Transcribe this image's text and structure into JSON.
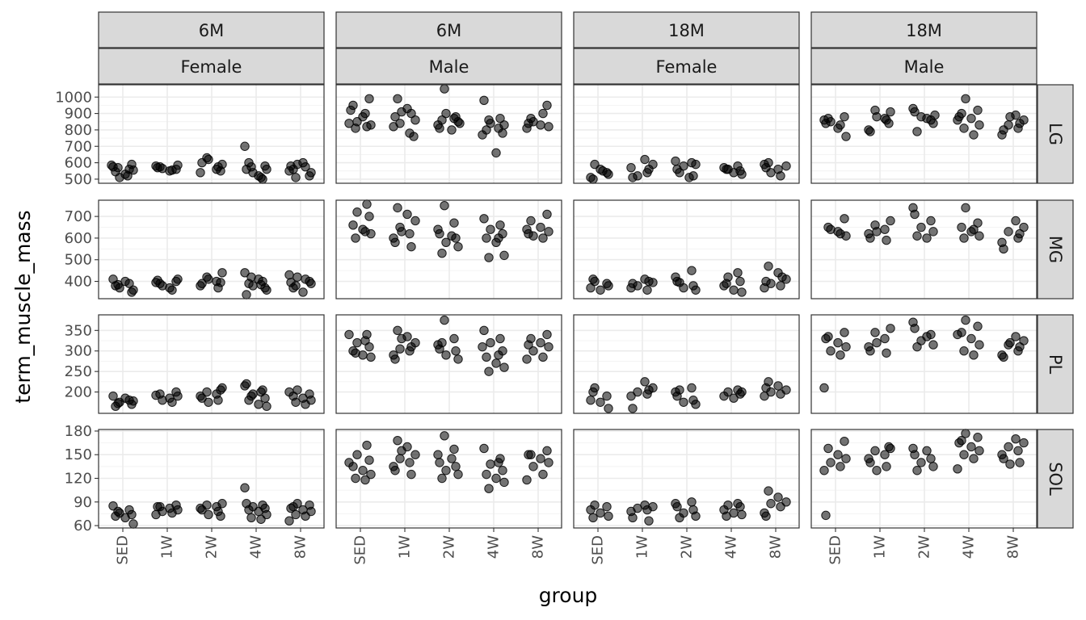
{
  "chart_data": {
    "type": "scatter",
    "xlabel": "group",
    "ylabel": "term_muscle_mass",
    "categories": [
      "SED",
      "1W",
      "2W",
      "4W",
      "8W"
    ],
    "columns": [
      {
        "age": "6M",
        "sex": "Female"
      },
      {
        "age": "6M",
        "sex": "Male"
      },
      {
        "age": "18M",
        "sex": "Female"
      },
      {
        "age": "18M",
        "sex": "Male"
      }
    ],
    "rows": [
      {
        "muscle": "LG",
        "ylim": [
          475,
          1075
        ],
        "ticks": [
          500,
          600,
          700,
          800,
          900,
          1000
        ],
        "tick_labels": [
          "500",
          "600",
          "700",
          "800",
          "900",
          "1000"
        ]
      },
      {
        "muscle": "MG",
        "ylim": [
          320,
          775
        ],
        "ticks": [
          400,
          500,
          600,
          700
        ],
        "tick_labels": [
          "400",
          "500",
          "600",
          "700"
        ]
      },
      {
        "muscle": "PL",
        "ylim": [
          148,
          388
        ],
        "ticks": [
          200,
          250,
          300,
          350
        ],
        "tick_labels": [
          "200",
          "250",
          "300",
          "350"
        ]
      },
      {
        "muscle": "SOL",
        "ylim": [
          57,
          182
        ],
        "ticks": [
          60,
          90,
          120,
          150,
          180
        ],
        "tick_labels": [
          "60",
          "90",
          "120",
          "150",
          "180"
        ]
      }
    ],
    "points": [
      [
        [
          [
            575,
            560,
            510,
            590,
            545,
            530,
            555,
            570,
            520,
            585
          ],
          [
            560,
            575,
            550,
            585,
            565,
            555,
            580,
            570
          ],
          [
            590,
            630,
            560,
            540,
            600,
            575,
            620,
            550
          ],
          [
            700,
            560,
            500,
            540,
            580,
            600,
            520,
            560,
            575,
            510
          ],
          [
            590,
            520,
            560,
            600,
            540,
            510,
            575,
            550,
            580
          ]
        ],
        [
          [
            820,
            850,
            990,
            950,
            880,
            830,
            810,
            900,
            840,
            920
          ],
          [
            990,
            930,
            860,
            840,
            780,
            820,
            880,
            900,
            910,
            760
          ],
          [
            1050,
            870,
            830,
            810,
            880,
            900,
            850,
            860,
            800,
            840
          ],
          [
            980,
            870,
            840,
            780,
            800,
            660,
            830,
            860,
            810,
            770
          ],
          [
            950,
            870,
            830,
            820,
            850,
            900,
            810,
            840
          ]
        ],
        [
          [
            590,
            540,
            510,
            560,
            530,
            500,
            550
          ],
          [
            620,
            590,
            520,
            540,
            570,
            510,
            560
          ],
          [
            600,
            610,
            560,
            520,
            580,
            590,
            540,
            510
          ],
          [
            580,
            560,
            550,
            570,
            540,
            530,
            560
          ],
          [
            600,
            560,
            580,
            540,
            520,
            590,
            570
          ]
        ],
        [
          [
            880,
            870,
            810,
            760,
            850,
            830,
            860,
            840
          ],
          [
            910,
            920,
            870,
            800,
            790,
            860,
            880,
            840
          ],
          [
            930,
            910,
            860,
            880,
            840,
            790,
            870,
            890
          ],
          [
            990,
            920,
            900,
            870,
            830,
            810,
            770,
            860,
            880
          ],
          [
            890,
            860,
            830,
            810,
            770,
            800,
            840,
            880
          ]
        ]
      ],
      [
        [
          [
            410,
            390,
            370,
            350,
            380,
            400,
            360,
            385
          ],
          [
            400,
            390,
            370,
            410,
            380,
            360,
            395,
            405
          ],
          [
            440,
            420,
            400,
            380,
            390,
            370,
            410,
            395
          ],
          [
            440,
            330,
            400,
            380,
            370,
            390,
            410,
            360,
            420,
            385
          ],
          [
            420,
            400,
            370,
            350,
            390,
            380,
            410,
            430,
            395
          ]
        ],
        [
          [
            760,
            720,
            700,
            660,
            640,
            620,
            600,
            630
          ],
          [
            740,
            710,
            680,
            650,
            620,
            600,
            580,
            560,
            630
          ],
          [
            750,
            670,
            640,
            620,
            600,
            580,
            560,
            530,
            610
          ],
          [
            690,
            660,
            640,
            620,
            600,
            580,
            520,
            510,
            600
          ],
          [
            710,
            680,
            650,
            630,
            610,
            600,
            640,
            620
          ]
        ],
        [
          [
            400,
            390,
            370,
            360,
            380,
            410
          ],
          [
            410,
            395,
            380,
            360,
            370,
            390,
            400
          ],
          [
            450,
            420,
            400,
            380,
            370,
            360,
            395
          ],
          [
            440,
            420,
            400,
            380,
            360,
            350,
            390
          ],
          [
            470,
            440,
            410,
            390,
            380,
            370,
            400,
            420
          ]
        ],
        [
          [
            690,
            650,
            630,
            610,
            640,
            620
          ],
          [
            680,
            660,
            640,
            620,
            600,
            590,
            630
          ],
          [
            740,
            710,
            680,
            650,
            630,
            610,
            600
          ],
          [
            740,
            670,
            650,
            630,
            610,
            600,
            640
          ],
          [
            680,
            650,
            630,
            600,
            580,
            550,
            620
          ]
        ]
      ],
      [
        [
          [
            190,
            180,
            175,
            170,
            165,
            185,
            178,
            172
          ],
          [
            200,
            195,
            185,
            190,
            180,
            175,
            192
          ],
          [
            210,
            200,
            195,
            190,
            185,
            180,
            175,
            205
          ],
          [
            215,
            220,
            205,
            195,
            185,
            180,
            170,
            165,
            190,
            200
          ],
          [
            205,
            195,
            190,
            185,
            180,
            175,
            170,
            200
          ]
        ],
        [
          [
            340,
            320,
            310,
            300,
            290,
            285,
            295,
            325,
            340
          ],
          [
            350,
            335,
            320,
            305,
            300,
            290,
            280,
            310,
            330
          ],
          [
            375,
            330,
            315,
            305,
            300,
            290,
            280,
            320
          ],
          [
            350,
            330,
            320,
            300,
            285,
            270,
            260,
            250,
            290,
            310
          ],
          [
            340,
            330,
            320,
            310,
            300,
            285,
            280,
            315
          ]
        ],
        [
          [
            210,
            190,
            180,
            175,
            160,
            200
          ],
          [
            225,
            210,
            200,
            195,
            190,
            160,
            205
          ],
          [
            210,
            200,
            190,
            180,
            175,
            170,
            205
          ],
          [
            205,
            200,
            195,
            190,
            185,
            200
          ],
          [
            225,
            215,
            205,
            200,
            195,
            190,
            210
          ]
        ],
        [
          [
            345,
            335,
            320,
            310,
            300,
            290,
            210,
            330
          ],
          [
            355,
            345,
            330,
            310,
            300,
            295,
            320
          ],
          [
            370,
            355,
            340,
            325,
            315,
            310,
            335
          ],
          [
            375,
            360,
            345,
            330,
            315,
            300,
            290,
            340
          ],
          [
            335,
            325,
            315,
            300,
            290,
            285,
            310,
            320
          ]
        ]
      ],
      [
        [
          [
            85,
            80,
            76,
            74,
            72,
            70,
            62,
            78
          ],
          [
            86,
            84,
            82,
            80,
            78,
            76,
            74,
            84
          ],
          [
            88,
            86,
            84,
            82,
            80,
            78,
            74,
            72
          ],
          [
            108,
            88,
            86,
            84,
            82,
            80,
            78,
            74,
            70,
            68
          ],
          [
            88,
            86,
            84,
            80,
            78,
            74,
            72,
            66,
            82
          ]
        ],
        [
          [
            162,
            150,
            143,
            135,
            130,
            125,
            120,
            118,
            140
          ],
          [
            168,
            160,
            150,
            145,
            140,
            135,
            130,
            125,
            155
          ],
          [
            174,
            157,
            150,
            140,
            135,
            130,
            125,
            120,
            145
          ],
          [
            158,
            145,
            138,
            130,
            125,
            120,
            115,
            107,
            140
          ],
          [
            155,
            150,
            145,
            140,
            135,
            125,
            118,
            150
          ]
        ],
        [
          [
            86,
            84,
            80,
            76,
            72,
            70
          ],
          [
            86,
            84,
            82,
            80,
            78,
            70,
            66
          ],
          [
            90,
            88,
            84,
            80,
            76,
            72,
            70
          ],
          [
            88,
            86,
            84,
            80,
            76,
            74,
            72
          ],
          [
            104,
            96,
            90,
            88,
            84,
            76,
            72
          ]
        ],
        [
          [
            167,
            158,
            150,
            145,
            140,
            135,
            130,
            73
          ],
          [
            158,
            155,
            150,
            145,
            140,
            135,
            130,
            160
          ],
          [
            158,
            150,
            145,
            140,
            135,
            130,
            155
          ],
          [
            180,
            172,
            168,
            160,
            155,
            150,
            145,
            132,
            165
          ],
          [
            170,
            165,
            160,
            155,
            150,
            145,
            140,
            138
          ]
        ]
      ]
    ]
  }
}
